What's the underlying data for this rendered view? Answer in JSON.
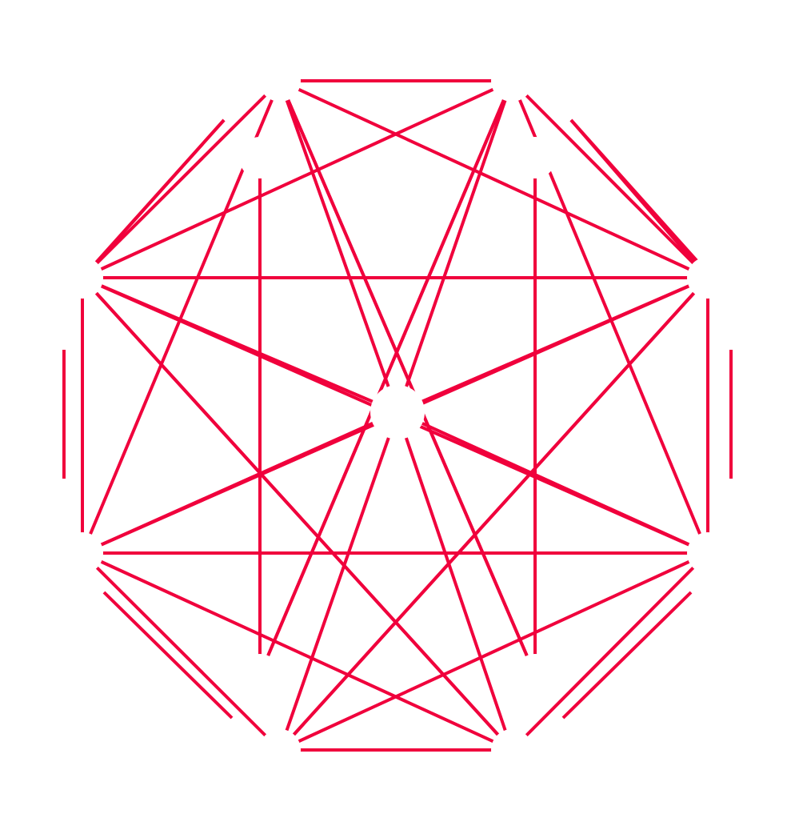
{
  "diagram": {
    "type": "graph",
    "edge_color": "#f0003c",
    "node_fill": "#ffffff",
    "nodes": [
      {
        "id": "n1"
      },
      {
        "id": "n2"
      },
      {
        "id": "n3"
      },
      {
        "id": "n4"
      },
      {
        "id": "n5"
      },
      {
        "id": "n6"
      },
      {
        "id": "n7"
      },
      {
        "id": "n8"
      },
      {
        "id": "n9"
      },
      {
        "id": "n10"
      },
      {
        "id": "n11"
      },
      {
        "id": "n12"
      },
      {
        "id": "n13"
      },
      {
        "id": "n14"
      },
      {
        "id": "n15"
      },
      {
        "id": "n16"
      },
      {
        "id": "n17"
      },
      {
        "id": "n18"
      },
      {
        "id": "n19"
      },
      {
        "id": "n20"
      },
      {
        "id": "n21"
      },
      {
        "id": "n22"
      },
      {
        "id": "n23"
      },
      {
        "id": "n24"
      },
      {
        "id": "n25"
      },
      {
        "id": "n26"
      },
      {
        "id": "n27"
      }
    ],
    "edges": [
      [
        "n1",
        "n2"
      ],
      [
        "n1",
        "n4"
      ],
      [
        "n1",
        "n7"
      ],
      [
        "n1",
        "n9"
      ],
      [
        "n1",
        "n12"
      ],
      [
        "n1",
        "n14"
      ],
      [
        "n2",
        "n3"
      ],
      [
        "n2",
        "n6"
      ],
      [
        "n2",
        "n8"
      ],
      [
        "n2",
        "n11"
      ],
      [
        "n2",
        "n13"
      ],
      [
        "n3",
        "n5"
      ],
      [
        "n3",
        "n6"
      ],
      [
        "n3",
        "n9"
      ],
      [
        "n3",
        "n11"
      ],
      [
        "n3",
        "n16"
      ],
      [
        "n4",
        "n5"
      ],
      [
        "n4",
        "n10"
      ],
      [
        "n4",
        "n14"
      ],
      [
        "n4",
        "n15"
      ],
      [
        "n4",
        "n17"
      ],
      [
        "n5",
        "n6"
      ],
      [
        "n5",
        "n10"
      ],
      [
        "n5",
        "n15"
      ],
      [
        "n5",
        "n16"
      ],
      [
        "n7",
        "n8"
      ],
      [
        "n7",
        "n10"
      ],
      [
        "n7",
        "n15"
      ],
      [
        "n7",
        "n17"
      ],
      [
        "n7",
        "n18"
      ],
      [
        "n8",
        "n9"
      ],
      [
        "n8",
        "n12"
      ],
      [
        "n8",
        "n13"
      ],
      [
        "n8",
        "n16"
      ],
      [
        "n9",
        "n15"
      ],
      [
        "n9",
        "n16"
      ],
      [
        "n9",
        "n18"
      ],
      [
        "n10",
        "n18"
      ],
      [
        "n11",
        "n12"
      ],
      [
        "n11",
        "n18"
      ],
      [
        "n12",
        "n13"
      ],
      [
        "n12",
        "n14"
      ],
      [
        "n12",
        "n15"
      ],
      [
        "n13",
        "n14"
      ],
      [
        "n13",
        "n17"
      ],
      [
        "n19",
        "n20"
      ],
      [
        "n21",
        "n22"
      ],
      [
        "n23",
        "n24"
      ],
      [
        "n25",
        "n26"
      ]
    ]
  }
}
